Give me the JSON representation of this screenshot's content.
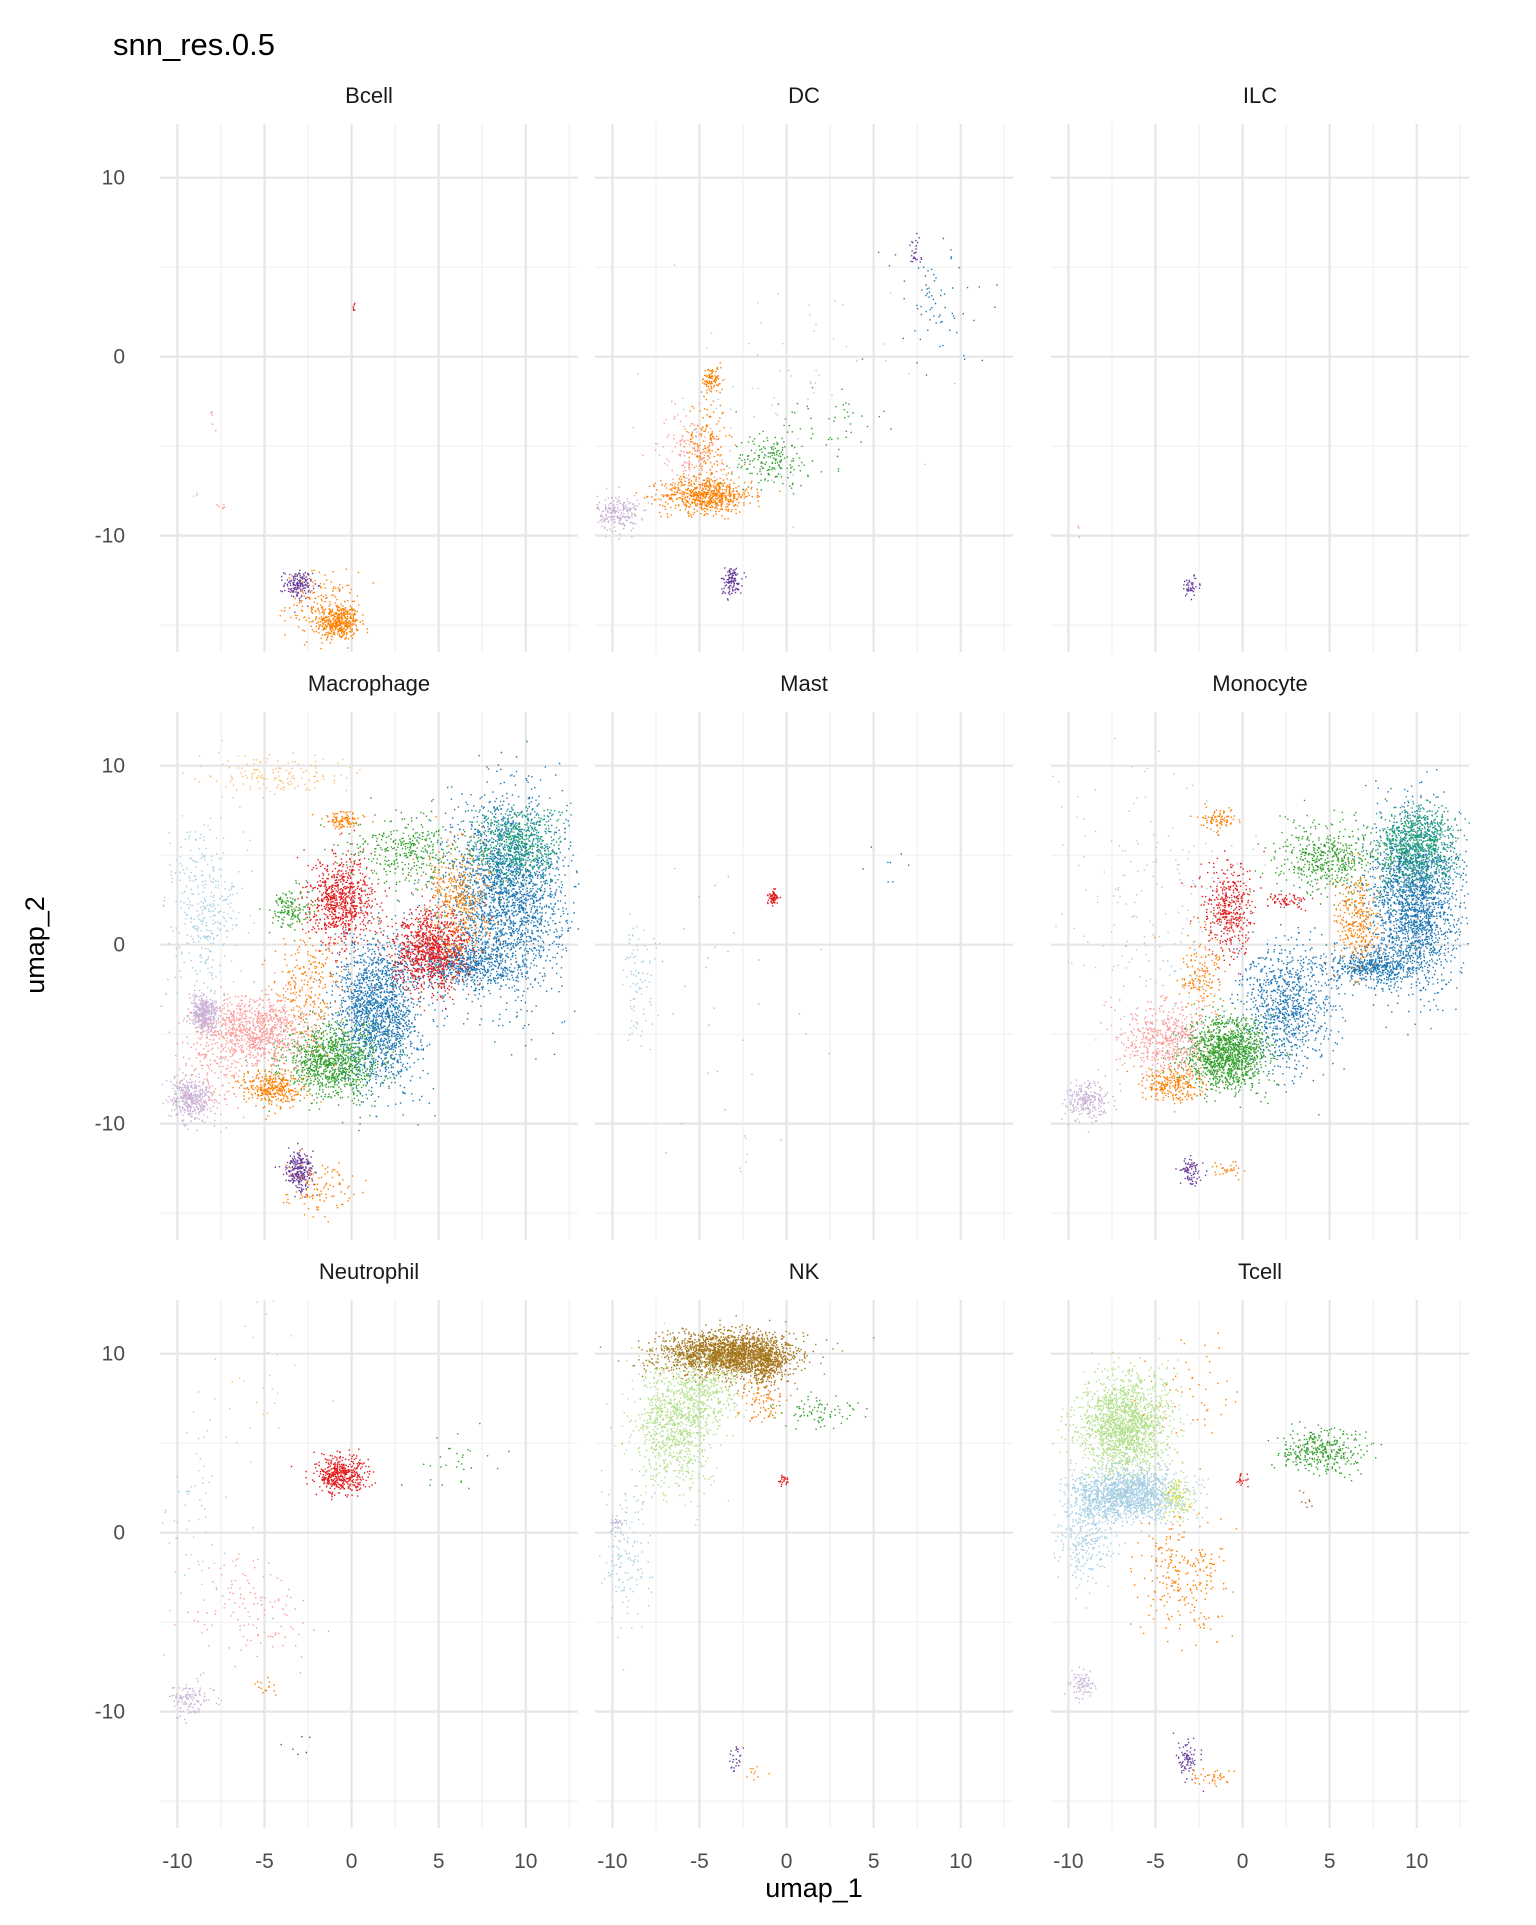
{
  "chart_data": {
    "type": "scatter",
    "title": "snn_res.0.5",
    "xlabel": "umap_1",
    "ylabel": "umap_2",
    "xlim": [
      -11,
      13
    ],
    "ylim": [
      -16.5,
      13
    ],
    "x_ticks": [
      -10,
      -5,
      0,
      5,
      10
    ],
    "x_tick_labels": [
      "-10",
      "-5",
      "0",
      "5",
      "10"
    ],
    "y_ticks": [
      10,
      0,
      -10
    ],
    "y_tick_labels": [
      "10",
      "0",
      "-10"
    ],
    "grid": true,
    "legend": "none",
    "palette": {
      "c0": "#1f78b4",
      "c1": "#e31a1c",
      "c2": "#33a02c",
      "c3": "#ff7f00",
      "c4": "#a6cee3",
      "c5": "#fb9a99",
      "c6": "#6a3d9a",
      "c7": "#cab2d6",
      "c8": "#b2df8a",
      "c9": "#fdbf6f",
      "c10": "#a6761d",
      "c11": "#1b9e77",
      "c12": "#b15928",
      "c13": "#cce55b"
    },
    "panels": [
      {
        "name": "Bcell",
        "clusters": [
          {
            "cluster": "c3",
            "cx": -0.8,
            "cy": -14.8,
            "sx": 0.6,
            "sy": 0.5,
            "n": 420
          },
          {
            "cluster": "c3",
            "cx": -1.8,
            "cy": -13.8,
            "sx": 1.0,
            "sy": 0.9,
            "n": 150
          },
          {
            "cluster": "c6",
            "cx": -3.1,
            "cy": -12.7,
            "sx": 0.4,
            "sy": 0.4,
            "n": 150
          },
          {
            "cluster": "c1",
            "cx": 0.1,
            "cy": 2.8,
            "sx": 0.05,
            "sy": 0.1,
            "n": 6
          },
          {
            "cluster": "c5",
            "cx": -7.5,
            "cy": -8.3,
            "sx": 0.2,
            "sy": 0.1,
            "n": 6
          },
          {
            "cluster": "c5",
            "cx": -7.9,
            "cy": -3.8,
            "sx": 0.3,
            "sy": 0.4,
            "n": 5
          },
          {
            "cluster": "c4",
            "cx": -9.0,
            "cy": -7.7,
            "sx": 0.2,
            "sy": 0.2,
            "n": 3
          }
        ]
      },
      {
        "name": "DC",
        "clusters": [
          {
            "cluster": "c3",
            "cx": -4.6,
            "cy": -7.7,
            "sx": 1.3,
            "sy": 0.5,
            "n": 650
          },
          {
            "cluster": "c3",
            "cx": -4.7,
            "cy": -4.8,
            "sx": 0.6,
            "sy": 1.3,
            "n": 160
          },
          {
            "cluster": "c3",
            "cx": -4.3,
            "cy": -1.3,
            "sx": 0.3,
            "sy": 0.4,
            "n": 90
          },
          {
            "cluster": "c5",
            "cx": -5.6,
            "cy": -5.2,
            "sx": 0.9,
            "sy": 1.1,
            "n": 130
          },
          {
            "cluster": "c7",
            "cx": -9.7,
            "cy": -8.7,
            "sx": 0.6,
            "sy": 0.5,
            "n": 220
          },
          {
            "cluster": "c6",
            "cx": -3.2,
            "cy": -12.5,
            "sx": 0.3,
            "sy": 0.4,
            "n": 110
          },
          {
            "cluster": "c2",
            "cx": -0.9,
            "cy": -5.8,
            "sx": 1.1,
            "sy": 0.7,
            "n": 170
          },
          {
            "cluster": "c2",
            "cx": 2.2,
            "cy": -3.6,
            "sx": 1.6,
            "sy": 1.2,
            "n": 60
          },
          {
            "cluster": "c6",
            "cx": 7.3,
            "cy": 5.8,
            "sx": 0.2,
            "sy": 0.4,
            "n": 25
          },
          {
            "cluster": "c0",
            "cx": 8.5,
            "cy": 3.0,
            "sx": 1.5,
            "sy": 1.8,
            "n": 70
          },
          {
            "cluster": "c4",
            "cx": -1.0,
            "cy": -2.0,
            "sx": 3.5,
            "sy": 3.0,
            "n": 70
          }
        ]
      },
      {
        "name": "ILC",
        "clusters": [
          {
            "cluster": "c6",
            "cx": -3.0,
            "cy": -12.8,
            "sx": 0.3,
            "sy": 0.3,
            "n": 45
          },
          {
            "cluster": "c5",
            "cx": -9.4,
            "cy": -9.6,
            "sx": 0.2,
            "sy": 0.3,
            "n": 3
          }
        ]
      },
      {
        "name": "Macrophage",
        "clusters": [
          {
            "cluster": "c0",
            "cx": 8.8,
            "cy": 2.8,
            "sx": 1.7,
            "sy": 2.6,
            "n": 2300
          },
          {
            "cluster": "c0",
            "cx": 6.3,
            "cy": -1.0,
            "sx": 1.5,
            "sy": 0.6,
            "n": 600
          },
          {
            "cluster": "c11",
            "cx": 9.5,
            "cy": 5.6,
            "sx": 1.3,
            "sy": 1.1,
            "n": 600
          },
          {
            "cluster": "c0",
            "cx": 1.5,
            "cy": -3.8,
            "sx": 1.2,
            "sy": 2.0,
            "n": 1700
          },
          {
            "cluster": "c1",
            "cx": 4.5,
            "cy": -0.3,
            "sx": 1.1,
            "sy": 1.1,
            "n": 950
          },
          {
            "cluster": "c1",
            "cx": -0.6,
            "cy": 2.5,
            "sx": 0.9,
            "sy": 1.2,
            "n": 750
          },
          {
            "cluster": "c3",
            "cx": 6.2,
            "cy": 2.5,
            "sx": 0.9,
            "sy": 1.6,
            "n": 400
          },
          {
            "cluster": "c2",
            "cx": 3.2,
            "cy": 5.3,
            "sx": 1.6,
            "sy": 1.0,
            "n": 350
          },
          {
            "cluster": "c2",
            "cx": -1.2,
            "cy": -6.5,
            "sx": 1.4,
            "sy": 1.0,
            "n": 1000
          },
          {
            "cluster": "c2",
            "cx": -3.6,
            "cy": 2.0,
            "sx": 0.6,
            "sy": 0.6,
            "n": 150
          },
          {
            "cluster": "c5",
            "cx": -5.5,
            "cy": -4.8,
            "sx": 1.5,
            "sy": 1.0,
            "n": 900
          },
          {
            "cluster": "c3",
            "cx": -4.6,
            "cy": -8.0,
            "sx": 0.9,
            "sy": 0.5,
            "n": 350
          },
          {
            "cluster": "c3",
            "cx": -2.5,
            "cy": -2.5,
            "sx": 1.0,
            "sy": 1.6,
            "n": 250
          },
          {
            "cluster": "c3",
            "cx": -0.5,
            "cy": 7.0,
            "sx": 0.5,
            "sy": 0.3,
            "n": 100
          },
          {
            "cluster": "c7",
            "cx": -8.5,
            "cy": -3.8,
            "sx": 0.4,
            "sy": 0.5,
            "n": 400
          },
          {
            "cluster": "c7",
            "cx": -9.2,
            "cy": -8.6,
            "sx": 0.6,
            "sy": 0.6,
            "n": 400
          },
          {
            "cluster": "c6",
            "cx": -3.0,
            "cy": -12.6,
            "sx": 0.4,
            "sy": 0.5,
            "n": 250
          },
          {
            "cluster": "c3",
            "cx": -2.0,
            "cy": -13.6,
            "sx": 1.0,
            "sy": 0.7,
            "n": 100
          },
          {
            "cluster": "c9",
            "cx": -4.5,
            "cy": 9.5,
            "sx": 2.3,
            "sy": 0.6,
            "n": 150
          },
          {
            "cluster": "c4",
            "cx": -8.5,
            "cy": 2.0,
            "sx": 1.0,
            "sy": 2.3,
            "n": 350
          },
          {
            "cluster": "c5",
            "cx": -8.0,
            "cy": -6.5,
            "sx": 1.0,
            "sy": 1.5,
            "n": 150
          }
        ]
      },
      {
        "name": "Mast",
        "clusters": [
          {
            "cluster": "c1",
            "cx": -0.8,
            "cy": 2.7,
            "sx": 0.15,
            "sy": 0.2,
            "n": 60
          },
          {
            "cluster": "c4",
            "cx": -8.5,
            "cy": -1.8,
            "sx": 0.5,
            "sy": 1.8,
            "n": 90
          },
          {
            "cluster": "c5",
            "cx": -3.5,
            "cy": -3.0,
            "sx": 3.0,
            "sy": 4.0,
            "n": 30
          },
          {
            "cluster": "c0",
            "cx": 5.5,
            "cy": 4.2,
            "sx": 1.3,
            "sy": 1.2,
            "n": 8
          },
          {
            "cluster": "c7",
            "cx": -2.5,
            "cy": -12.0,
            "sx": 0.5,
            "sy": 1.0,
            "n": 6
          }
        ]
      },
      {
        "name": "Monocyte",
        "clusters": [
          {
            "cluster": "c0",
            "cx": 9.8,
            "cy": 2.5,
            "sx": 1.3,
            "sy": 2.4,
            "n": 2000
          },
          {
            "cluster": "c0",
            "cx": 7.3,
            "cy": -1.2,
            "sx": 1.2,
            "sy": 0.5,
            "n": 500
          },
          {
            "cluster": "c11",
            "cx": 10.0,
            "cy": 5.5,
            "sx": 1.1,
            "sy": 1.1,
            "n": 800
          },
          {
            "cluster": "c0",
            "cx": 2.5,
            "cy": -3.5,
            "sx": 1.3,
            "sy": 1.8,
            "n": 900
          },
          {
            "cluster": "c2",
            "cx": -1.0,
            "cy": -6.0,
            "sx": 1.2,
            "sy": 1.0,
            "n": 1300
          },
          {
            "cluster": "c2",
            "cx": 5.0,
            "cy": 4.8,
            "sx": 1.6,
            "sy": 1.0,
            "n": 500
          },
          {
            "cluster": "c3",
            "cx": 6.5,
            "cy": 1.5,
            "sx": 0.6,
            "sy": 1.2,
            "n": 300
          },
          {
            "cluster": "c3",
            "cx": -1.5,
            "cy": 7.0,
            "sx": 0.5,
            "sy": 0.3,
            "n": 80
          },
          {
            "cluster": "c1",
            "cx": -0.8,
            "cy": 2.0,
            "sx": 0.7,
            "sy": 1.3,
            "n": 400
          },
          {
            "cluster": "c1",
            "cx": 2.5,
            "cy": 2.5,
            "sx": 0.6,
            "sy": 0.2,
            "n": 60
          },
          {
            "cluster": "c5",
            "cx": -4.5,
            "cy": -5.2,
            "sx": 1.3,
            "sy": 1.0,
            "n": 500
          },
          {
            "cluster": "c3",
            "cx": -4.0,
            "cy": -7.8,
            "sx": 0.9,
            "sy": 0.5,
            "n": 250
          },
          {
            "cluster": "c3",
            "cx": -2.5,
            "cy": -1.5,
            "sx": 0.7,
            "sy": 1.2,
            "n": 150
          },
          {
            "cluster": "c7",
            "cx": -9.0,
            "cy": -8.7,
            "sx": 0.6,
            "sy": 0.5,
            "n": 250
          },
          {
            "cluster": "c6",
            "cx": -3.0,
            "cy": -12.6,
            "sx": 0.3,
            "sy": 0.4,
            "n": 80
          },
          {
            "cluster": "c4",
            "cx": -5.0,
            "cy": 2.0,
            "sx": 3.0,
            "sy": 3.5,
            "n": 200
          },
          {
            "cluster": "c3",
            "cx": -1.0,
            "cy": -12.5,
            "sx": 0.7,
            "sy": 0.2,
            "n": 30
          }
        ]
      },
      {
        "name": "Neutrophil",
        "clusters": [
          {
            "cluster": "c1",
            "cx": -0.6,
            "cy": 3.3,
            "sx": 0.7,
            "sy": 0.6,
            "n": 450
          },
          {
            "cluster": "c5",
            "cx": -6.0,
            "cy": -4.3,
            "sx": 1.5,
            "sy": 1.5,
            "n": 130
          },
          {
            "cluster": "c7",
            "cx": -9.3,
            "cy": -9.2,
            "sx": 0.6,
            "sy": 0.5,
            "n": 120
          },
          {
            "cluster": "c4",
            "cx": -9.0,
            "cy": 0.5,
            "sx": 1.0,
            "sy": 2.5,
            "n": 60
          },
          {
            "cluster": "c9",
            "cx": -5.0,
            "cy": 7.5,
            "sx": 1.5,
            "sy": 2.0,
            "n": 30
          },
          {
            "cluster": "c2",
            "cx": 6.0,
            "cy": 4.0,
            "sx": 1.2,
            "sy": 0.8,
            "n": 30
          },
          {
            "cluster": "c3",
            "cx": -4.9,
            "cy": -8.5,
            "sx": 0.4,
            "sy": 0.3,
            "n": 15
          },
          {
            "cluster": "c6",
            "cx": -3.2,
            "cy": -12.0,
            "sx": 0.3,
            "sy": 0.5,
            "n": 6
          }
        ]
      },
      {
        "name": "NK",
        "clusters": [
          {
            "cluster": "c10",
            "cx": -3.3,
            "cy": 10.0,
            "sx": 1.9,
            "sy": 0.6,
            "n": 2000
          },
          {
            "cluster": "c10",
            "cx": -1.3,
            "cy": 9.4,
            "sx": 0.6,
            "sy": 0.6,
            "n": 300
          },
          {
            "cluster": "c8",
            "cx": -6.5,
            "cy": 6.0,
            "sx": 1.1,
            "sy": 1.8,
            "n": 900
          },
          {
            "cluster": "c8",
            "cx": -4.5,
            "cy": 8.0,
            "sx": 1.0,
            "sy": 1.0,
            "n": 300
          },
          {
            "cluster": "c2",
            "cx": 2.2,
            "cy": 6.8,
            "sx": 1.3,
            "sy": 0.5,
            "n": 80
          },
          {
            "cluster": "c3",
            "cx": -1.5,
            "cy": 7.5,
            "sx": 0.6,
            "sy": 0.6,
            "n": 80
          },
          {
            "cluster": "c1",
            "cx": -0.2,
            "cy": 3.0,
            "sx": 0.2,
            "sy": 0.2,
            "n": 25
          },
          {
            "cluster": "c4",
            "cx": -9.3,
            "cy": -1.0,
            "sx": 0.8,
            "sy": 2.0,
            "n": 150
          },
          {
            "cluster": "c7",
            "cx": -9.8,
            "cy": 0.5,
            "sx": 0.2,
            "sy": 0.3,
            "n": 25
          },
          {
            "cluster": "c6",
            "cx": -2.9,
            "cy": -12.5,
            "sx": 0.2,
            "sy": 0.4,
            "n": 25
          },
          {
            "cluster": "c3",
            "cx": -2.0,
            "cy": -13.5,
            "sx": 0.3,
            "sy": 0.2,
            "n": 10
          }
        ]
      },
      {
        "name": "Tcell",
        "clusters": [
          {
            "cluster": "c8",
            "cx": -6.8,
            "cy": 6.0,
            "sx": 1.3,
            "sy": 1.4,
            "n": 1700
          },
          {
            "cluster": "c4",
            "cx": -6.6,
            "cy": 2.2,
            "sx": 1.6,
            "sy": 0.7,
            "n": 1500
          },
          {
            "cluster": "c4",
            "cx": -9.0,
            "cy": 0.0,
            "sx": 0.8,
            "sy": 1.3,
            "n": 300
          },
          {
            "cluster": "c13",
            "cx": -3.8,
            "cy": 2.0,
            "sx": 0.4,
            "sy": 0.5,
            "n": 130
          },
          {
            "cluster": "c2",
            "cx": 4.5,
            "cy": 4.6,
            "sx": 1.2,
            "sy": 0.6,
            "n": 350
          },
          {
            "cluster": "c3",
            "cx": -3.5,
            "cy": -2.5,
            "sx": 1.3,
            "sy": 1.6,
            "n": 250
          },
          {
            "cluster": "c3",
            "cx": -3.0,
            "cy": 8.0,
            "sx": 1.5,
            "sy": 1.5,
            "n": 50
          },
          {
            "cluster": "c1",
            "cx": -0.2,
            "cy": 3.0,
            "sx": 0.2,
            "sy": 0.2,
            "n": 20
          },
          {
            "cluster": "c6",
            "cx": -3.2,
            "cy": -12.6,
            "sx": 0.3,
            "sy": 0.5,
            "n": 80
          },
          {
            "cluster": "c3",
            "cx": -2.0,
            "cy": -13.6,
            "sx": 0.6,
            "sy": 0.3,
            "n": 40
          },
          {
            "cluster": "c7",
            "cx": -9.2,
            "cy": -8.5,
            "sx": 0.4,
            "sy": 0.4,
            "n": 80
          },
          {
            "cluster": "c12",
            "cx": 3.5,
            "cy": 2.0,
            "sx": 0.3,
            "sy": 0.3,
            "n": 8
          }
        ]
      }
    ]
  }
}
